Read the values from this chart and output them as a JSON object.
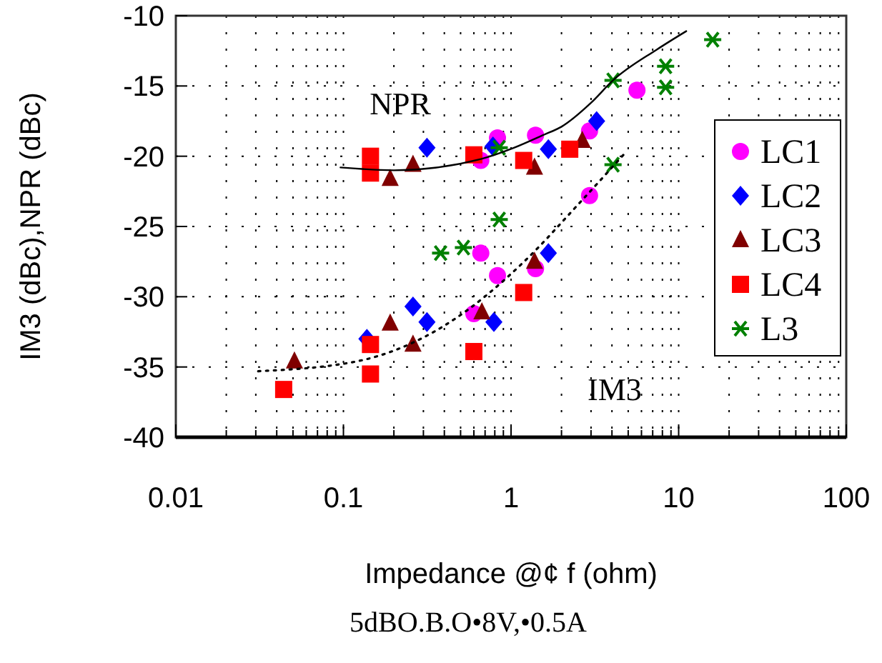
{
  "chart_data": {
    "type": "scatter",
    "xlabel": "Impedance @¢ f (ohm)",
    "ylabel": "IM3 (dBc),NPR (dBc)",
    "log": "x",
    "xlim": [
      0.01,
      100
    ],
    "xticks": [
      0.01,
      0.1,
      1,
      10,
      100
    ],
    "ylim": [
      -40,
      -10
    ],
    "yticks": [
      -40,
      -35,
      -30,
      -25,
      -20,
      -15,
      -10
    ],
    "grid": true,
    "legend": "right",
    "annotations": [
      "NPR",
      "IM3",
      "5dBO.B.O•8V,•0.5A"
    ],
    "series": [
      {
        "name": "LC1",
        "color": "#ff00ff",
        "marker": "circle",
        "x": [
          0.6,
          0.66,
          0.66,
          0.83,
          0.83,
          1.4,
          1.4,
          2.94,
          2.94,
          5.64
        ],
        "values": [
          -31.2,
          -20.3,
          -26.9,
          -18.7,
          -28.5,
          -18.5,
          -28.0,
          -18.2,
          -22.8,
          -15.3
        ]
      },
      {
        "name": "LC2",
        "color": "#0000ff",
        "marker": "diamond",
        "x": [
          0.138,
          0.26,
          0.315,
          0.315,
          0.78,
          0.79,
          1.67,
          1.67,
          3.24
        ],
        "values": [
          -33.0,
          -30.7,
          -19.4,
          -31.8,
          -19.3,
          -31.8,
          -19.5,
          -26.9,
          -17.5
        ]
      },
      {
        "name": "LC3",
        "color": "#800000",
        "marker": "triangle",
        "x": [
          0.051,
          0.19,
          0.19,
          0.26,
          0.26,
          0.67,
          1.38,
          1.38,
          2.66
        ],
        "values": [
          -34.6,
          -21.6,
          -31.9,
          -20.6,
          -33.4,
          -31.1,
          -20.8,
          -27.5,
          -18.9
        ]
      },
      {
        "name": "LC4",
        "color": "#ff0000",
        "marker": "square",
        "x": [
          0.044,
          0.145,
          0.145,
          0.145,
          0.145,
          0.6,
          0.6,
          1.19,
          1.19,
          2.24
        ],
        "values": [
          -36.6,
          -20.0,
          -21.2,
          -33.4,
          -35.5,
          -19.9,
          -33.9,
          -20.3,
          -29.7,
          -19.5
        ]
      },
      {
        "name": "L3",
        "color": "#008000",
        "marker": "cross",
        "x": [
          0.38,
          0.52,
          0.85,
          0.85,
          4.06,
          4.06,
          8.36,
          8.36,
          15.96
        ],
        "values": [
          -26.9,
          -26.5,
          -24.5,
          -19.4,
          -14.6,
          -20.6,
          -13.6,
          -15.1,
          -11.7
        ]
      },
      {
        "type": "line",
        "color": "#000000",
        "line_style": "solid",
        "marker": "none",
        "x": [
          0.096,
          0.2,
          0.66,
          1.04,
          1.55,
          2.0,
          3.0,
          4.06,
          7.43,
          11.1
        ],
        "values": [
          -20.8,
          -21.0,
          -20.2,
          -19.4,
          -18.5,
          -17.9,
          -16.2,
          -14.6,
          -12.4,
          -11.1
        ]
      },
      {
        "type": "line",
        "color": "#000000",
        "line_style": "dotted",
        "marker": "none",
        "x": [
          0.031,
          0.12,
          0.42,
          1.27,
          2.44,
          4.85
        ],
        "values": [
          -35.3,
          -34.6,
          -31.9,
          -27.2,
          -23.6,
          -19.7
        ]
      }
    ]
  }
}
